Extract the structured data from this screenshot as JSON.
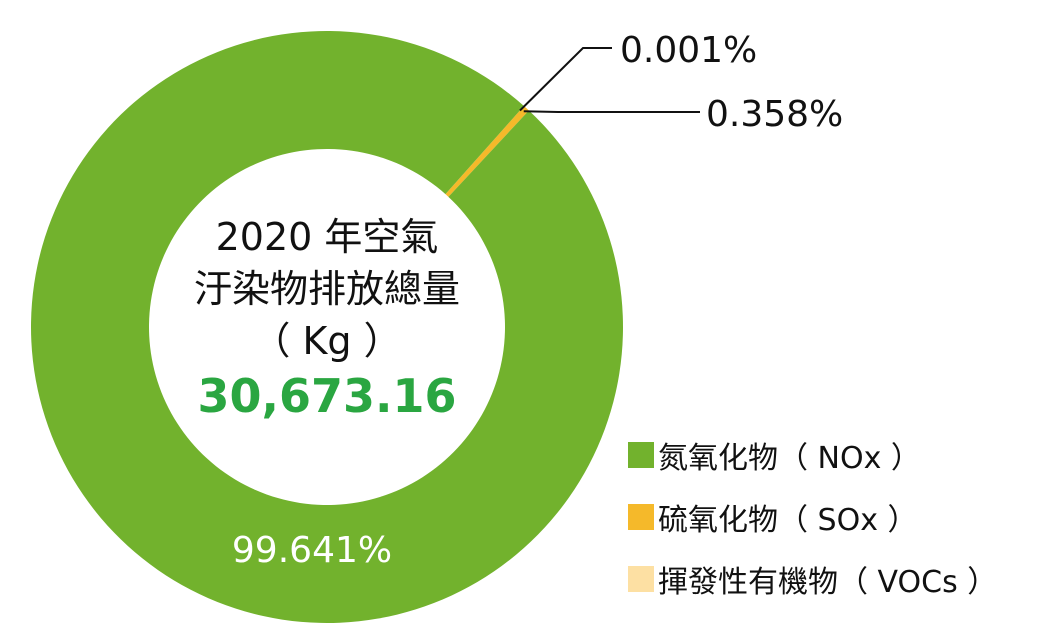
{
  "chart_data": {
    "type": "pie",
    "categories": [
      "氮氧化物（ NOx ）",
      "硫氧化物（ SOx ）",
      "揮發性有機物（ VOCs ）"
    ],
    "values": [
      99.641,
      0.358,
      0.001
    ],
    "value_labels": [
      "99.641%",
      "0.358%",
      "0.001%"
    ],
    "colors": [
      "#72b22d",
      "#f5b92a",
      "#fde0a3"
    ],
    "center": {
      "line1": "2020 年空氣",
      "line2": "汙染物排放總量",
      "line3": "（ Kg ）",
      "total": "30,673.16",
      "total_color": "#2aa641"
    },
    "legend_position": "bottom-right"
  }
}
